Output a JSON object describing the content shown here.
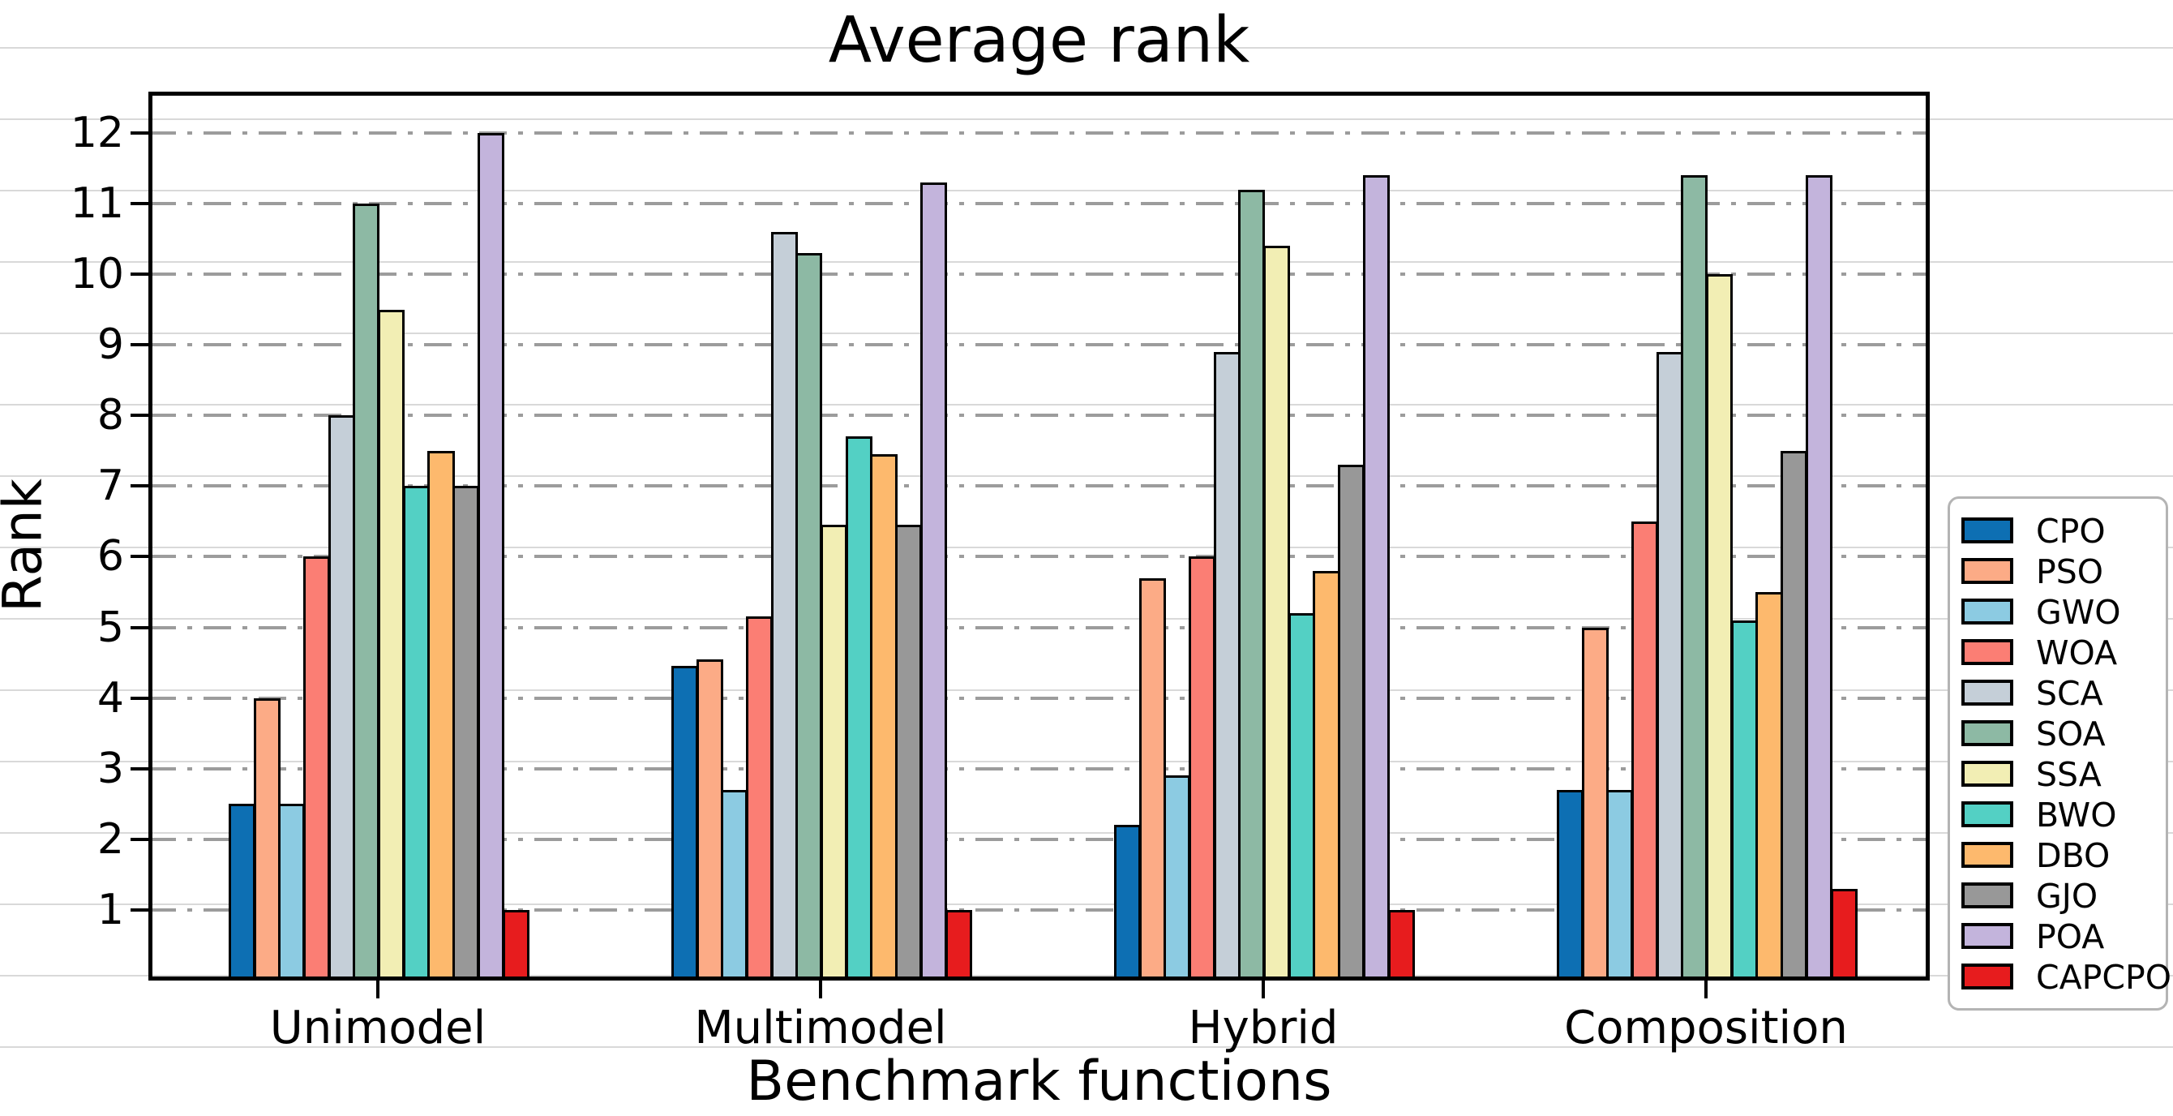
{
  "title": "Average rank",
  "chart_data": {
    "type": "bar",
    "title": "Average rank",
    "xlabel": "Benchmark functions",
    "ylabel": "Rank",
    "categories": [
      "Unimodel",
      "Multimodel",
      "Hybrid",
      "Composition"
    ],
    "series": [
      {
        "name": "CPO",
        "color": "#0d6fb3",
        "values": [
          2.5,
          4.45,
          2.2,
          2.7
        ]
      },
      {
        "name": "PSO",
        "color": "#fcab86",
        "values": [
          4.0,
          4.55,
          5.7,
          5.0
        ]
      },
      {
        "name": "GWO",
        "color": "#8ccbe2",
        "values": [
          2.5,
          2.7,
          2.9,
          2.7
        ]
      },
      {
        "name": "WOA",
        "color": "#fb7e74",
        "values": [
          6.0,
          5.15,
          6.0,
          6.5
        ]
      },
      {
        "name": "SCA",
        "color": "#c5cfd8",
        "values": [
          8.0,
          10.6,
          8.9,
          8.9
        ]
      },
      {
        "name": "SOA",
        "color": "#8db9a4",
        "values": [
          11.0,
          10.3,
          11.2,
          11.4
        ]
      },
      {
        "name": "SSA",
        "color": "#f2eeb4",
        "values": [
          9.5,
          6.45,
          10.4,
          10.0
        ]
      },
      {
        "name": "BWO",
        "color": "#53d0c4",
        "values": [
          7.0,
          7.7,
          5.2,
          5.1
        ]
      },
      {
        "name": "DBO",
        "color": "#fdb96d",
        "values": [
          7.5,
          7.45,
          5.8,
          5.5
        ]
      },
      {
        "name": "GJO",
        "color": "#989898",
        "values": [
          7.0,
          6.45,
          7.3,
          7.5
        ]
      },
      {
        "name": "POA",
        "color": "#c3b4dc",
        "values": [
          12.0,
          11.3,
          11.4,
          11.4
        ]
      },
      {
        "name": "CAPCPO",
        "color": "#e71c1e",
        "values": [
          1.0,
          1.0,
          1.0,
          1.3
        ]
      }
    ],
    "yticks": [
      1,
      2,
      3,
      4,
      5,
      6,
      7,
      8,
      9,
      10,
      11,
      12
    ],
    "ylim": [
      0,
      12.6
    ],
    "grid": "horizontal dash-dot at integer ranks",
    "legend_position": "outside-right"
  }
}
